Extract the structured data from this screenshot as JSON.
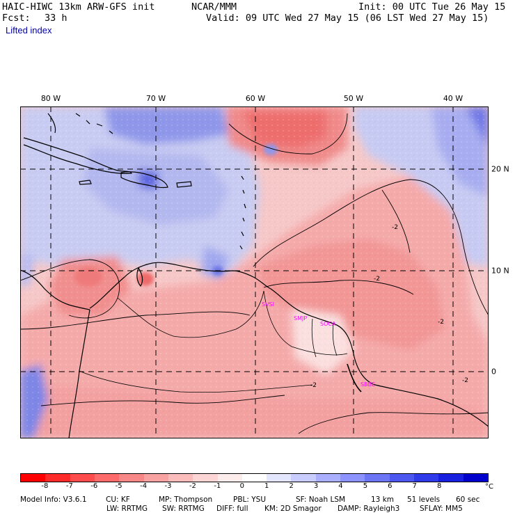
{
  "header": {
    "model": "HAIC-HIWC 13km ARW-GFS init",
    "org": "NCAR/MMM",
    "init": "Init: 00 UTC Tue 26 May 15",
    "fcst_label": "Fcst:",
    "fcst_value": "33 h",
    "valid": "Valid: 09 UTC Wed 27 May 15 (06 LST Wed 27 May 15)",
    "field": "Lifted index"
  },
  "map": {
    "lon_labels": [
      "80 W",
      "70 W",
      "60 W",
      "50 W",
      "40 W"
    ],
    "lat_labels": [
      "20 N",
      "10 N",
      "0"
    ],
    "stations": [
      "SVSI",
      "SMJP",
      "SOCA",
      "SBBE"
    ],
    "contour_labels": [
      "-2",
      "-2",
      "-2",
      "-2",
      "-2"
    ],
    "colors": {
      "stable_max": "#0000cc",
      "neutral": "#ffffff",
      "unstable_max": "#ff0000",
      "coast": "#000000",
      "station": "#ff00ff"
    }
  },
  "colorbar": {
    "ticks": [
      "-8",
      "-7",
      "-6",
      "-5",
      "-4",
      "-3",
      "-2",
      "-1",
      "0",
      "1",
      "2",
      "3",
      "4",
      "5",
      "6",
      "7",
      "8"
    ],
    "unit": "°C",
    "colors": [
      "#ff0000",
      "#ff2a2a",
      "#ff4d4d",
      "#ff6b6b",
      "#f88787",
      "#f9a2a2",
      "#fbbcbc",
      "#fdd5d5",
      "#fdecec",
      "#ffffff",
      "#e4e6ff",
      "#c8ccff",
      "#aab0ff",
      "#8c93ff",
      "#6c76f5",
      "#4c57ef",
      "#2f3ae8",
      "#1820e0",
      "#0000cc"
    ]
  },
  "footer": {
    "line1": [
      "Model Info: V3.6.1",
      "CU: KF",
      "MP: Thompson",
      "PBL: YSU",
      "SF: Noah LSM",
      "13 km",
      "51 levels",
      "60 sec"
    ],
    "line2": [
      "LW: RRTMG",
      "SW: RRTMG",
      "DIFF: full",
      "KM: 2D Smagor",
      "DAMP: Rayleigh3",
      "SFLAY: MM5"
    ]
  }
}
